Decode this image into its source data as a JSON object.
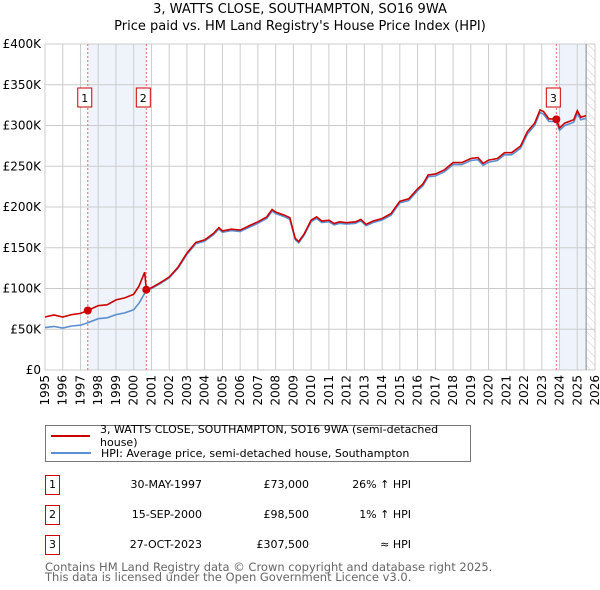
{
  "chart_data": {
    "type": "line",
    "title": "3, WATTS CLOSE, SOUTHAMPTON, SO16 9WA",
    "subtitle": "Price paid vs. HM Land Registry's House Price Index (HPI)",
    "xlim": [
      1995,
      2026
    ],
    "ylim": [
      0,
      400000
    ],
    "x_ticks": [
      "1995",
      "1996",
      "1997",
      "1998",
      "1999",
      "2000",
      "2001",
      "2002",
      "2003",
      "2004",
      "2005",
      "2006",
      "2007",
      "2008",
      "2009",
      "2010",
      "2011",
      "2012",
      "2013",
      "2014",
      "2015",
      "2016",
      "2017",
      "2018",
      "2019",
      "2020",
      "2021",
      "2022",
      "2023",
      "2024",
      "2025",
      "2026"
    ],
    "y_ticks": [
      {
        "v": 0,
        "label": "£0"
      },
      {
        "v": 50000,
        "label": "£50K"
      },
      {
        "v": 100000,
        "label": "£100K"
      },
      {
        "v": 150000,
        "label": "£150K"
      },
      {
        "v": 200000,
        "label": "£200K"
      },
      {
        "v": 250000,
        "label": "£250K"
      },
      {
        "v": 300000,
        "label": "£300K"
      },
      {
        "v": 350000,
        "label": "£350K"
      },
      {
        "v": 400000,
        "label": "£400K"
      }
    ],
    "grid": true,
    "colors": {
      "property": "#cc0000",
      "hpi": "#5b8fd0",
      "shade": "#eef3fc"
    },
    "shaded_ranges": [
      [
        1997.41,
        2000.71
      ],
      [
        2024.0,
        2025.5
      ]
    ],
    "hatched_from": 2025.5,
    "series": [
      {
        "name": "3, WATTS CLOSE, SOUTHAMPTON, SO16 9WA (semi-detached house)",
        "points_until_sale2": [
          [
            1995.0,
            65000
          ],
          [
            1995.5,
            67500
          ],
          [
            1996.0,
            65000
          ],
          [
            1996.5,
            68000
          ],
          [
            1997.0,
            69500
          ],
          [
            1997.41,
            73000
          ],
          [
            1998.0,
            79000
          ],
          [
            1998.5,
            80000
          ],
          [
            1999.0,
            86000
          ],
          [
            1999.5,
            88500
          ],
          [
            2000.0,
            93000
          ],
          [
            2000.3,
            103000
          ],
          [
            2000.62,
            120000
          ],
          [
            2000.71,
            98500
          ]
        ],
        "ratio_to_hpi_after_sale2": 1.01
      },
      {
        "name": "HPI: Average price, semi-detached house, Southampton",
        "points": [
          [
            1995.0,
            52000
          ],
          [
            1995.5,
            53500
          ],
          [
            1996.0,
            51500
          ],
          [
            1996.5,
            54000
          ],
          [
            1997.0,
            55000
          ],
          [
            1997.41,
            58000
          ],
          [
            1998.0,
            63000
          ],
          [
            1998.5,
            64000
          ],
          [
            1999.0,
            68000
          ],
          [
            1999.5,
            70000
          ],
          [
            2000.0,
            74000
          ],
          [
            2000.3,
            82000
          ],
          [
            2000.71,
            97500
          ],
          [
            2001.0,
            100000
          ],
          [
            2001.5,
            106000
          ],
          [
            2002.0,
            113000
          ],
          [
            2002.5,
            125000
          ],
          [
            2003.0,
            142000
          ],
          [
            2003.5,
            155000
          ],
          [
            2004.0,
            158000
          ],
          [
            2004.5,
            166000
          ],
          [
            2004.8,
            173000
          ],
          [
            2005.0,
            169000
          ],
          [
            2005.5,
            171000
          ],
          [
            2006.0,
            170000
          ],
          [
            2006.5,
            175000
          ],
          [
            2007.0,
            180000
          ],
          [
            2007.5,
            186000
          ],
          [
            2007.8,
            195000
          ],
          [
            2008.0,
            192000
          ],
          [
            2008.5,
            188000
          ],
          [
            2008.8,
            185000
          ],
          [
            2009.1,
            160000
          ],
          [
            2009.3,
            156000
          ],
          [
            2009.6,
            165000
          ],
          [
            2010.0,
            182000
          ],
          [
            2010.3,
            186000
          ],
          [
            2010.6,
            181000
          ],
          [
            2011.0,
            182000
          ],
          [
            2011.3,
            178000
          ],
          [
            2011.6,
            180000
          ],
          [
            2012.0,
            179000
          ],
          [
            2012.5,
            180000
          ],
          [
            2012.8,
            183000
          ],
          [
            2013.1,
            177000
          ],
          [
            2013.5,
            181000
          ],
          [
            2014.0,
            184000
          ],
          [
            2014.5,
            190000
          ],
          [
            2015.0,
            205000
          ],
          [
            2015.5,
            208000
          ],
          [
            2016.0,
            220000
          ],
          [
            2016.3,
            226000
          ],
          [
            2016.6,
            237000
          ],
          [
            2017.0,
            238000
          ],
          [
            2017.5,
            243000
          ],
          [
            2018.0,
            252000
          ],
          [
            2018.5,
            252000
          ],
          [
            2019.0,
            257000
          ],
          [
            2019.4,
            258000
          ],
          [
            2019.7,
            251000
          ],
          [
            2020.0,
            255000
          ],
          [
            2020.5,
            257000
          ],
          [
            2020.9,
            264000
          ],
          [
            2021.3,
            264000
          ],
          [
            2021.8,
            272000
          ],
          [
            2022.2,
            290000
          ],
          [
            2022.6,
            300000
          ],
          [
            2022.9,
            316000
          ],
          [
            2023.1,
            314000
          ],
          [
            2023.4,
            305000
          ],
          [
            2023.82,
            305000
          ],
          [
            2024.0,
            294000
          ],
          [
            2024.3,
            300000
          ],
          [
            2024.8,
            304000
          ],
          [
            2025.0,
            315000
          ],
          [
            2025.2,
            307000
          ],
          [
            2025.5,
            309000
          ]
        ]
      }
    ],
    "sales": [
      {
        "n": "1",
        "x": 1997.41,
        "y": 73000,
        "date": "30-MAY-1997",
        "price": "£73,000",
        "hpi": "26% ↑ HPI"
      },
      {
        "n": "2",
        "x": 2000.71,
        "y": 98500,
        "date": "15-SEP-2000",
        "price": "£98,500",
        "hpi": "1% ↑ HPI"
      },
      {
        "n": "3",
        "x": 2023.82,
        "y": 307500,
        "date": "27-OCT-2023",
        "price": "£307,500",
        "hpi": "≈ HPI"
      }
    ]
  },
  "legend": {
    "property": "3, WATTS CLOSE, SOUTHAMPTON, SO16 9WA (semi-detached house)",
    "hpi": "HPI: Average price, semi-detached house, Southampton"
  },
  "footer": {
    "line1": "Contains HM Land Registry data © Crown copyright and database right 2025.",
    "line2": "This data is licensed under the Open Government Licence v3.0."
  }
}
